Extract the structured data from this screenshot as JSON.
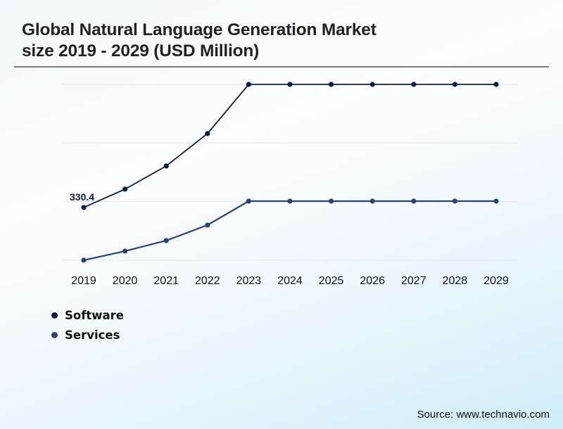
{
  "title_line1": "Global Natural Language Generation Market",
  "title_line2": "size 2019 - 2029 (USD Million)",
  "source": "Source: www.technavio.com",
  "chart_data": {
    "type": "line",
    "title": "Global Natural Language Generation Market size 2019 - 2029 (USD Million)",
    "xlabel": "",
    "ylabel": "",
    "categories": [
      "2019",
      "2020",
      "2021",
      "2022",
      "2023",
      "2024",
      "2025",
      "2026",
      "2027",
      "2028",
      "2029"
    ],
    "ylim": [
      0,
      1101
    ],
    "gridlines": [
      0,
      367,
      734,
      1101
    ],
    "grid": true,
    "y_tick_labels_shown": false,
    "legend_position": "bottom-left",
    "series": [
      {
        "name": "Software",
        "color": "#0d1b3e",
        "values": [
          330.4,
          445,
          590,
          793,
          1101,
          1101,
          1101,
          1101,
          1101,
          1101,
          1101
        ]
      },
      {
        "name": "Services",
        "color": "#2e4272",
        "values": [
          0,
          57,
          123,
          220,
          370,
          370,
          370,
          370,
          370,
          370,
          370
        ]
      }
    ],
    "annotations": [
      {
        "series": "Software",
        "category": "2019",
        "text": "330.4"
      }
    ]
  }
}
